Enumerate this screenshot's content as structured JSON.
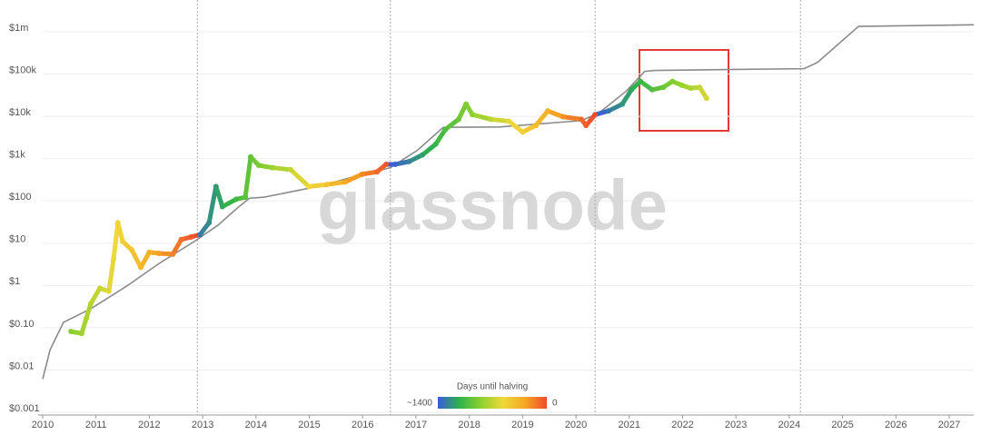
{
  "chart_data": {
    "type": "line",
    "watermark": "glassnode",
    "log_y": true,
    "grid": true,
    "xlim": [
      2010,
      2027.46
    ],
    "ylim": [
      0.001,
      1000000
    ],
    "xticks": [
      2010,
      2011,
      2012,
      2013,
      2014,
      2015,
      2016,
      2017,
      2018,
      2019,
      2020,
      2021,
      2022,
      2023,
      2024,
      2025,
      2026,
      2027
    ],
    "yticks": [
      {
        "value": 0.001,
        "label": "$0.001"
      },
      {
        "value": 0.01,
        "label": "$0.01"
      },
      {
        "value": 0.1,
        "label": "$0.10"
      },
      {
        "value": 1,
        "label": "$1"
      },
      {
        "value": 10,
        "label": "$10"
      },
      {
        "value": 100,
        "label": "$100"
      },
      {
        "value": 1000,
        "label": "$1k"
      },
      {
        "value": 10000,
        "label": "$10k"
      },
      {
        "value": 100000,
        "label": "$100k"
      },
      {
        "value": 1000000,
        "label": "$1m"
      }
    ],
    "halvings": [
      2012.9,
      2016.52,
      2020.36,
      2024.21
    ],
    "colorbar": {
      "title": "Days until halving",
      "min": {
        "value": 1400,
        "label": "~1400"
      },
      "max": 0,
      "colors": [
        "#3b5bdb",
        "#2fb34a",
        "#8fd12e",
        "#f0d83a",
        "#f5a623",
        "#ef4a2e"
      ]
    },
    "price": {
      "x": [
        2010.53,
        2010.73,
        2010.82,
        2010.9,
        2011.07,
        2011.24,
        2011.33,
        2011.41,
        2011.5,
        2011.67,
        2011.84,
        2012.0,
        2012.18,
        2012.44,
        2012.6,
        2012.78,
        2012.95,
        2013.12,
        2013.25,
        2013.37,
        2013.63,
        2013.8,
        2013.9,
        2014.05,
        2014.31,
        2014.65,
        2014.99,
        2015.33,
        2015.67,
        2015.99,
        2016.27,
        2016.44,
        2016.61,
        2016.87,
        2017.12,
        2017.37,
        2017.55,
        2017.8,
        2017.94,
        2018.06,
        2018.4,
        2018.74,
        2019.0,
        2019.25,
        2019.47,
        2019.76,
        2020.1,
        2020.19,
        2020.36,
        2020.61,
        2020.87,
        2021.04,
        2021.21,
        2021.43,
        2021.64,
        2021.81,
        2021.98,
        2022.15,
        2022.32,
        2022.45
      ],
      "values": [
        0.067,
        0.06,
        0.14,
        0.3,
        0.7,
        0.6,
        3.5,
        25,
        9,
        5.7,
        2.2,
        5,
        4.7,
        4.5,
        10,
        11.5,
        13,
        25,
        180,
        60,
        90,
        100,
        900,
        570,
        500,
        450,
        180,
        200,
        230,
        350,
        400,
        600,
        600,
        700,
        1000,
        1800,
        4000,
        7000,
        16000,
        9000,
        7000,
        6300,
        3500,
        5000,
        11000,
        8000,
        7000,
        5000,
        9000,
        11000,
        16000,
        35000,
        55000,
        35000,
        40000,
        55000,
        45000,
        38000,
        40000,
        22000
      ]
    },
    "model": {
      "color": "#8a8a8a",
      "x": [
        2010.0,
        2010.14,
        2010.39,
        2010.9,
        2011.58,
        2012.18,
        2012.86,
        2013.29,
        2013.63,
        2013.88,
        2014.14,
        2015.16,
        2016.01,
        2016.52,
        2017.03,
        2017.51,
        2018.57,
        2020.1,
        2020.44,
        2020.95,
        2021.29,
        2021.47,
        2022.83,
        2024.28,
        2024.53,
        2025.3,
        2027.46
      ],
      "values": [
        0.005,
        0.025,
        0.11,
        0.23,
        0.8,
        2.7,
        9.3,
        22,
        53,
        95,
        100,
        180,
        350,
        500,
        1300,
        4500,
        4600,
        6500,
        10000,
        33000,
        95000,
        100000,
        105000,
        110000,
        155000,
        1100000,
        1200000
      ]
    }
  }
}
